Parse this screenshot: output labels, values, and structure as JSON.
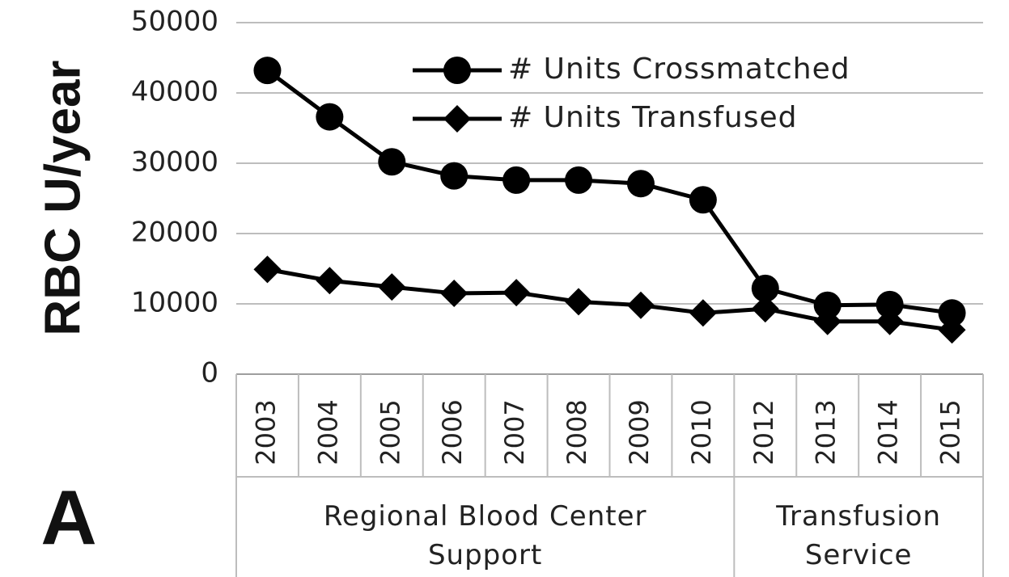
{
  "chart_data": {
    "type": "line",
    "y_label": "RBC U/year",
    "panel_label": "A",
    "category_groups": [
      {
        "name": "Regional Blood Center Support",
        "categories": [
          "2003",
          "2004",
          "2005",
          "2006",
          "2007",
          "2008",
          "2009",
          "2010"
        ]
      },
      {
        "name": "Transfusion Service",
        "categories": [
          "2012",
          "2013",
          "2014",
          "2015"
        ]
      }
    ],
    "series": [
      {
        "name": "# Units Crossmatched",
        "color": "#000000",
        "marker": "circle",
        "values": [
          43200,
          36600,
          30200,
          28200,
          27600,
          27600,
          27100,
          24800,
          12200,
          9800,
          9900,
          8700
        ]
      },
      {
        "name": "# Units Transfused",
        "color": "#000000",
        "marker": "diamond",
        "values": [
          14900,
          13300,
          12400,
          11500,
          11600,
          10300,
          9800,
          8700,
          9300,
          7500,
          7500,
          6300
        ]
      }
    ],
    "ylim": [
      0,
      50000
    ],
    "yticks": [
      0,
      10000,
      20000,
      30000,
      40000,
      50000
    ],
    "grid": true,
    "legend": "top"
  }
}
